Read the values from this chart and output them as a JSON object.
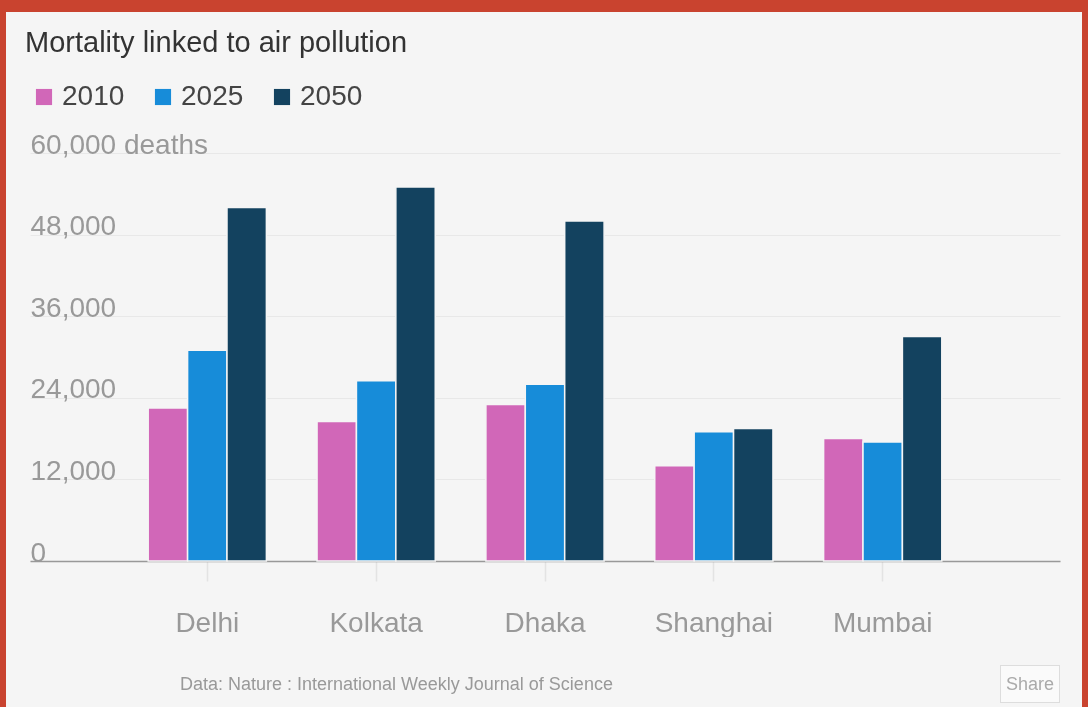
{
  "chart_data": {
    "type": "bar",
    "title": "Mortality linked to air pollution",
    "categories": [
      "Delhi",
      "Kolkata",
      "Dhaka",
      "Shanghai",
      "Mumbai"
    ],
    "series": [
      {
        "name": "2010",
        "color": "#d167b8",
        "values": [
          22500,
          20500,
          23000,
          14000,
          18000
        ]
      },
      {
        "name": "2025",
        "color": "#178cd9",
        "values": [
          31000,
          26500,
          26000,
          19000,
          17500
        ]
      },
      {
        "name": "2050",
        "color": "#13425f",
        "values": [
          52000,
          55000,
          50000,
          19500,
          33000
        ]
      }
    ],
    "ylim": [
      0,
      60000
    ],
    "yticks": [
      0,
      {
        "value": 12000,
        "label": "12,000"
      },
      {
        "value": 24000,
        "label": "24,000"
      },
      {
        "value": 36000,
        "label": "36,000"
      },
      {
        "value": 48000,
        "label": "48,000"
      },
      {
        "value": 60000,
        "label": "60,000 deaths"
      }
    ],
    "grid": "y",
    "legend": "top left",
    "annotations": [
      "Data: Nature : International Weekly Journal of Science",
      "Share"
    ]
  }
}
